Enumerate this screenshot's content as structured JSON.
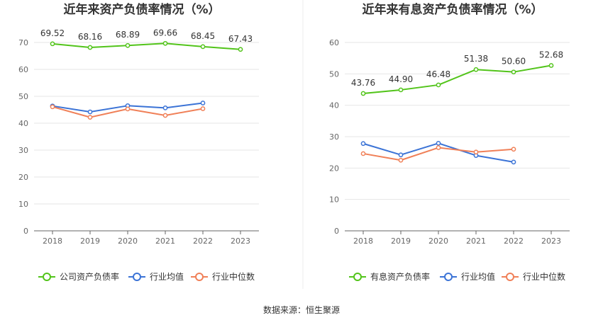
{
  "source_text": "数据来源：恒生聚源",
  "chart_data": [
    {
      "type": "line",
      "title": "近年来资产负债率情况（%）",
      "categories": [
        "2018",
        "2019",
        "2020",
        "2021",
        "2022",
        "2023"
      ],
      "ylim": [
        0,
        70
      ],
      "yticks": [
        0,
        10,
        20,
        30,
        40,
        50,
        60,
        70
      ],
      "grid": true,
      "legend_position": "bottom",
      "series": [
        {
          "name": "公司资产负债率",
          "color": "#52c41a",
          "values": [
            69.52,
            68.16,
            68.89,
            69.66,
            68.45,
            67.43
          ],
          "labels": [
            "69.52",
            "68.16",
            "68.89",
            "69.66",
            "68.45",
            "67.43"
          ]
        },
        {
          "name": "行业均值",
          "color": "#3b73d6",
          "values": [
            46.4,
            44.2,
            46.5,
            45.7,
            47.5,
            null
          ]
        },
        {
          "name": "行业中位数",
          "color": "#f08058",
          "values": [
            46.1,
            42.2,
            45.3,
            42.9,
            45.4,
            null
          ]
        }
      ]
    },
    {
      "type": "line",
      "title": "近年来有息资产负债率情况（%）",
      "categories": [
        "2018",
        "2019",
        "2020",
        "2021",
        "2022",
        "2023"
      ],
      "ylim": [
        0,
        60
      ],
      "yticks": [
        0,
        10,
        20,
        30,
        40,
        50,
        60
      ],
      "grid": true,
      "legend_position": "bottom",
      "series": [
        {
          "name": "有息资产负债率",
          "color": "#52c41a",
          "values": [
            43.76,
            44.9,
            46.48,
            51.38,
            50.6,
            52.68
          ],
          "labels": [
            "43.76",
            "44.90",
            "46.48",
            "51.38",
            "50.60",
            "52.68"
          ]
        },
        {
          "name": "行业均值",
          "color": "#3b73d6",
          "values": [
            27.8,
            24.2,
            27.9,
            24.0,
            21.9,
            null
          ]
        },
        {
          "name": "行业中位数",
          "color": "#f08058",
          "values": [
            24.6,
            22.5,
            26.5,
            25.1,
            26.0,
            null
          ]
        }
      ]
    }
  ]
}
